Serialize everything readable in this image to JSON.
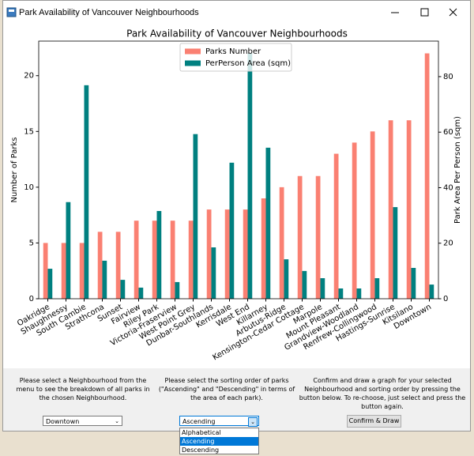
{
  "window": {
    "title": "Park Availability of Vancouver Neighbourhoods"
  },
  "chart_data": {
    "type": "bar",
    "title": "Park Availability of Vancouver Neighbourhoods",
    "categories": [
      "Oakridge",
      "Shaughnessy",
      "South Cambie",
      "Strathcona",
      "Sunset",
      "Fairview",
      "Riley Park",
      "Victoria-Fraserview",
      "West Point Grey",
      "Dunbar-Southlands",
      "Kerrisdale",
      "West End",
      "Killarney",
      "Arbutus-Ridge",
      "Kensington-Cedar Cottage",
      "Marpole",
      "Mount Pleasant",
      "Grandview-Woodland",
      "Renfrew-Collingwood",
      "Hastings-Sunrise",
      "Kitsilano",
      "Downtown"
    ],
    "series": [
      {
        "name": "Parks Number",
        "color": "#fa8072",
        "values": [
          5,
          5,
          5,
          6,
          6,
          7,
          7,
          7,
          7,
          8,
          8,
          8,
          9,
          10,
          11,
          11,
          13,
          14,
          15,
          16,
          16,
          22
        ]
      },
      {
        "name": "PerPerson Area (sqm)",
        "color": "#008080",
        "axis": "y2",
        "values": [
          10.8,
          34.8,
          76.9,
          13.7,
          6.8,
          4.0,
          31.6,
          6.0,
          59.3,
          18.5,
          49.0,
          88.4,
          54.4,
          14.2,
          10.0,
          7.4,
          3.7,
          3.7,
          7.4,
          33.0,
          11.1,
          5.1
        ]
      }
    ],
    "ylabel": "Number of Parks",
    "y2label": "Park Area Per Person (sqm)",
    "ylim": [
      0,
      23.1
    ],
    "yticks": [
      0,
      5,
      10,
      15,
      20
    ],
    "y2lim": [
      0,
      92.8
    ],
    "y2ticks": [
      0,
      20,
      40,
      60,
      80
    ],
    "legend": "upper center"
  },
  "controls": {
    "neighbourhood_hint": [
      "Please select a Neighbourhood from the",
      "menu to see the breakdown of all parks in",
      "the chosen Neighbourhood."
    ],
    "sort_hint": [
      "Please select the sorting order of parks",
      "(\"Ascending\" and \"Descending\" in terms of",
      "the area of each park)."
    ],
    "draw_hint": [
      "Confirm and draw a graph for your selected",
      "Neighbourhood and sorting order by pressing the",
      "button below. To re-choose, just select and press the",
      "button again."
    ],
    "neighbourhood_selected": "Downtown",
    "sort_selected": "Ascending",
    "sort_options": [
      "Alphabetical",
      "Ascending",
      "Descending"
    ],
    "button": "Confirm & Draw"
  }
}
